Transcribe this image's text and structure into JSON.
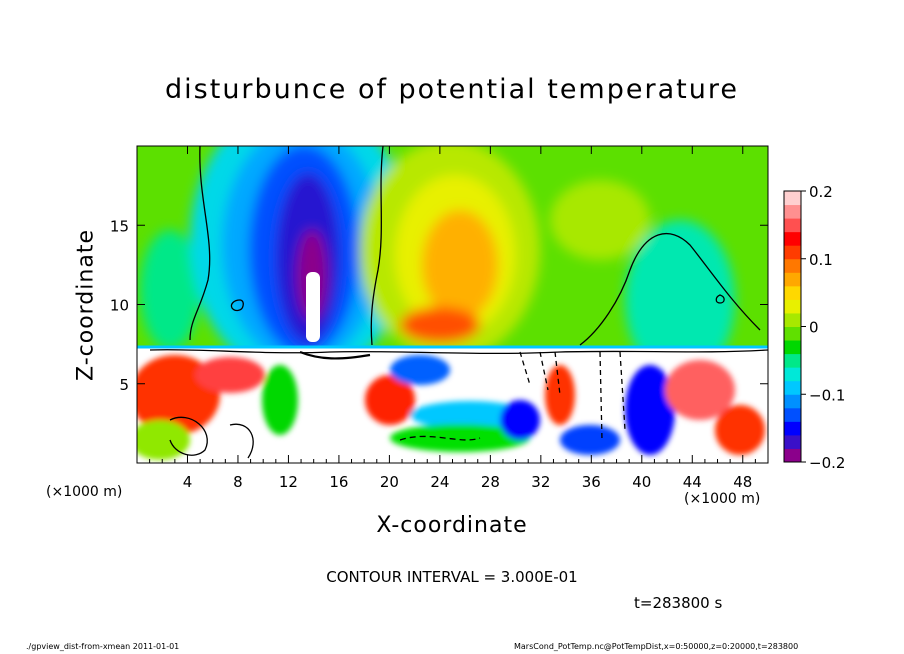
{
  "chart_data": {
    "type": "heatmap",
    "title": "disturbunce of potential temperature",
    "xlabel": "X-coordinate",
    "ylabel": "Z-coordinate",
    "x_unit_left": "(×1000 m)",
    "x_unit_right": "(×1000 m)",
    "xlim": [
      0,
      50
    ],
    "ylim": [
      0,
      20
    ],
    "x_ticks": [
      4,
      8,
      12,
      16,
      20,
      24,
      28,
      32,
      36,
      40,
      44,
      48
    ],
    "y_ticks": [
      5,
      10,
      15
    ],
    "colorbar": {
      "range": [
        -0.2,
        0.2
      ],
      "ticks": [
        "0.2",
        "0.1",
        "0",
        "−0.1",
        "−0.2"
      ],
      "colors": [
        "#8b008b",
        "#3a10c8",
        "#0000ff",
        "#0050ff",
        "#0090ff",
        "#00c8ff",
        "#00e8d8",
        "#00e888",
        "#00d800",
        "#60e000",
        "#a8e800",
        "#e8f000",
        "#ffd800",
        "#ffa800",
        "#ff7800",
        "#ff3c00",
        "#ff0000",
        "#ff5050",
        "#ff9090",
        "#ffd0d0"
      ]
    },
    "contour_interval": "CONTOUR INTERVAL = 3.000E-01",
    "time": "t=283800 s"
  },
  "footer": {
    "left": "./gpview_dist-from-xmean  2011-01-01",
    "right": "MarsCond_PotTemp.nc@PotTempDist,x=0:50000,z=0:20000,t=283800"
  }
}
